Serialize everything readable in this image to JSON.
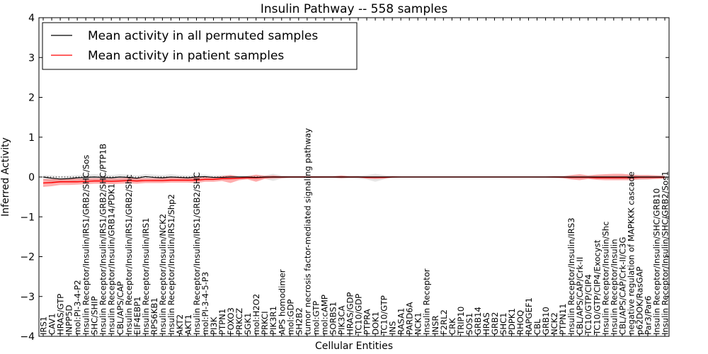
{
  "chart_data": {
    "type": "line",
    "title": "Insulin Pathway -- 558 samples",
    "xlabel": "Cellular Entities",
    "ylabel": "Inferred Activity",
    "ylim": [
      -4,
      4
    ],
    "yticks": [
      -4,
      -3,
      -2,
      -1,
      0,
      1,
      2,
      3,
      4
    ],
    "grid": false,
    "legend_position": "top-left",
    "categories": [
      "IRS1",
      "CAV1",
      "HRAS/GTP",
      "INPP5D",
      "mol:PI-3-4-P2",
      "Insulin Receptor/Insulin/IRS1/GRB2/SHC/Sos",
      "SHC/SHIP",
      "Insulin Receptor/Insulin/IRS1/GRB2/SHC/PTP1B",
      "Insulin Receptor/Insulin/GRB14/PDK1",
      "CBL/APS/CAP",
      "Insulin Receptor/Insulin/IRS1/GRB2/Shc",
      "EIF4EBP1",
      "Insulin Receptor/Insulin/IRS1",
      "RPS6KB1",
      "Insulin Receptor/Insulin/NCK2",
      "Insulin Receptor/Insulin/IRS1/Shp2",
      "AKT2",
      "AKT1",
      "Insulin Receptor/Insulin/IRS1/GRB2/SHC",
      "mol:PI-3-4-5-P3",
      "PI3K",
      "PTPN1",
      "FOXO3",
      "PRKCZ",
      "SGK1",
      "mol:H2O2",
      "PRKCI",
      "PIK3R1",
      "APS homodimer",
      "mol:GDP",
      "SH2B2",
      "tumor necrosis factor-mediated signaling pathway",
      "mol:GTP",
      "mol:cAMP",
      "SORBS1",
      "PIK3CA",
      "HRAS/GDP",
      "TC10/GDP",
      "PTPRA",
      "DOK1",
      "TC10/GTP",
      "INS",
      "RASA1",
      "PARD6A",
      "NCK1",
      "Insulin Receptor",
      "INSR",
      "F2RL2",
      "CRK",
      "TRIP10",
      "SOS1",
      "GRB14",
      "HRAS",
      "GRB2",
      "SHC1",
      "PDPK1",
      "RHOQ",
      "RAPGEF1",
      "CBL",
      "GRB10",
      "NCK2",
      "PTPN11",
      "Insulin Receptor/Insulin/IRS3",
      "CBL/APS/CAP/Crk-II",
      "TC10/GTP/CIP4",
      "TC10/GTP/CIP4/Exocyst",
      "Insulin Receptor/Insulin/Shc",
      "Insulin Receptor/Insulin",
      "CBL/APS/CAP/Crk-II/C3G",
      "negative regulation of MAPKKK cascade",
      "p62DOK/RasGAP",
      "Par3/Par6",
      "Insulin Receptor/Insulin/SHC/GRB10",
      "Insulin Receptor/Insulin/SHC/GRB2/Sos1"
    ],
    "series": [
      {
        "name": "Mean activity in all permuted samples",
        "color": "#000000",
        "values": [
          0.0,
          -0.03,
          -0.05,
          -0.04,
          -0.02,
          -0.01,
          0.0,
          -0.01,
          -0.02,
          0.0,
          -0.01,
          -0.03,
          0.01,
          -0.01,
          -0.02,
          0.0,
          -0.01,
          -0.02,
          0.0,
          0.01,
          -0.01,
          -0.01,
          0.0,
          0.0,
          0.0,
          -0.01,
          0.0,
          0.0,
          0.0,
          0.0,
          0.0,
          0.0,
          0.0,
          0.0,
          0.0,
          0.0,
          0.0,
          0.0,
          0.0,
          0.0,
          0.0,
          0.0,
          0.0,
          0.0,
          0.0,
          0.0,
          0.0,
          0.0,
          0.0,
          0.0,
          0.0,
          0.0,
          0.0,
          0.0,
          0.0,
          0.0,
          0.0,
          0.0,
          0.0,
          0.0,
          0.0,
          0.0,
          0.0,
          0.0,
          0.0,
          0.0,
          0.0,
          0.0,
          0.0,
          0.0,
          0.0,
          0.0,
          0.0,
          0.0
        ],
        "lower": [
          -0.08,
          -0.12,
          -0.14,
          -0.12,
          -0.1,
          -0.08,
          -0.08,
          -0.08,
          -0.1,
          -0.08,
          -0.08,
          -0.1,
          -0.06,
          -0.08,
          -0.1,
          -0.07,
          -0.06,
          -0.1,
          -0.05,
          -0.04,
          -0.07,
          -0.07,
          -0.06,
          -0.04,
          -0.05,
          -0.07,
          -0.04,
          -0.1,
          -0.04,
          -0.02,
          -0.02,
          -0.02,
          -0.03,
          -0.02,
          -0.02,
          -0.04,
          -0.03,
          -0.05,
          -0.06,
          -0.12,
          -0.06,
          -0.02,
          -0.01,
          -0.01,
          -0.01,
          -0.01,
          -0.01,
          -0.01,
          -0.01,
          -0.01,
          -0.01,
          -0.01,
          -0.01,
          -0.01,
          -0.01,
          -0.01,
          -0.01,
          -0.01,
          -0.02,
          -0.02,
          -0.02,
          -0.03,
          -0.05,
          -0.04,
          -0.05,
          -0.05,
          -0.05,
          -0.06,
          -0.06,
          -0.06,
          -0.07,
          -0.06,
          -0.05,
          -0.04
        ],
        "upper": [
          0.05,
          0.04,
          0.02,
          0.03,
          0.05,
          0.06,
          0.07,
          0.06,
          0.05,
          0.07,
          0.06,
          0.04,
          0.07,
          0.06,
          0.05,
          0.07,
          0.05,
          0.04,
          0.06,
          0.06,
          0.04,
          0.05,
          0.05,
          0.04,
          0.04,
          0.04,
          0.04,
          0.08,
          0.04,
          0.02,
          0.02,
          0.02,
          0.02,
          0.02,
          0.02,
          0.03,
          0.02,
          0.03,
          0.05,
          0.08,
          0.05,
          0.02,
          0.01,
          0.01,
          0.01,
          0.01,
          0.01,
          0.01,
          0.01,
          0.01,
          0.01,
          0.01,
          0.01,
          0.01,
          0.01,
          0.01,
          0.01,
          0.01,
          0.01,
          0.01,
          0.02,
          0.02,
          0.03,
          0.03,
          0.03,
          0.04,
          0.04,
          0.04,
          0.05,
          0.05,
          0.05,
          0.05,
          0.04,
          0.03
        ]
      },
      {
        "name": "Mean activity in patient samples",
        "color": "#ff0000",
        "values": [
          -0.15,
          -0.14,
          -0.12,
          -0.12,
          -0.12,
          -0.11,
          -0.1,
          -0.1,
          -0.11,
          -0.1,
          -0.09,
          -0.1,
          -0.09,
          -0.09,
          -0.09,
          -0.08,
          -0.08,
          -0.08,
          -0.08,
          -0.06,
          -0.06,
          -0.04,
          -0.04,
          -0.03,
          -0.02,
          -0.02,
          -0.01,
          0.0,
          0.0,
          0.0,
          0.0,
          0.0,
          0.0,
          0.0,
          0.0,
          0.0,
          0.0,
          0.0,
          -0.01,
          -0.01,
          -0.01,
          0.0,
          0.0,
          0.0,
          0.0,
          0.0,
          0.0,
          0.0,
          0.0,
          0.0,
          0.0,
          0.0,
          0.0,
          0.0,
          0.0,
          0.0,
          0.0,
          0.0,
          0.0,
          0.0,
          0.0,
          0.0,
          -0.01,
          -0.01,
          -0.01,
          -0.02,
          -0.02,
          -0.02,
          -0.02,
          -0.02,
          -0.01,
          -0.01,
          -0.01,
          -0.01
        ],
        "lower": [
          -0.25,
          -0.23,
          -0.2,
          -0.2,
          -0.19,
          -0.18,
          -0.17,
          -0.17,
          -0.18,
          -0.17,
          -0.16,
          -0.17,
          -0.15,
          -0.15,
          -0.15,
          -0.14,
          -0.14,
          -0.14,
          -0.15,
          -0.12,
          -0.12,
          -0.1,
          -0.15,
          -0.08,
          -0.06,
          -0.12,
          -0.05,
          -0.04,
          -0.03,
          -0.02,
          -0.02,
          -0.02,
          -0.02,
          -0.02,
          -0.02,
          -0.03,
          -0.02,
          -0.02,
          -0.04,
          -0.05,
          -0.04,
          -0.02,
          -0.01,
          -0.01,
          -0.01,
          -0.01,
          -0.01,
          -0.01,
          -0.01,
          -0.01,
          -0.01,
          -0.01,
          -0.01,
          -0.01,
          -0.01,
          -0.01,
          -0.01,
          -0.01,
          -0.01,
          -0.01,
          -0.02,
          -0.03,
          -0.06,
          -0.08,
          -0.05,
          -0.07,
          -0.08,
          -0.08,
          -0.08,
          -0.08,
          -0.06,
          -0.06,
          -0.05,
          -0.04
        ],
        "upper": [
          -0.05,
          -0.05,
          -0.04,
          -0.04,
          -0.04,
          -0.04,
          -0.03,
          -0.03,
          -0.04,
          -0.03,
          -0.02,
          -0.03,
          -0.03,
          -0.03,
          -0.03,
          -0.02,
          -0.02,
          -0.02,
          -0.01,
          0.0,
          0.0,
          0.02,
          0.05,
          0.01,
          0.02,
          0.06,
          0.03,
          0.04,
          0.02,
          0.02,
          0.02,
          0.02,
          0.02,
          0.02,
          0.02,
          0.04,
          0.02,
          0.02,
          0.02,
          0.02,
          0.02,
          0.02,
          0.01,
          0.01,
          0.01,
          0.01,
          0.01,
          0.01,
          0.01,
          0.01,
          0.01,
          0.01,
          0.01,
          0.01,
          0.01,
          0.01,
          0.01,
          0.01,
          0.01,
          0.01,
          0.02,
          0.02,
          0.05,
          0.07,
          0.04,
          0.06,
          0.07,
          0.08,
          0.08,
          0.06,
          0.05,
          0.05,
          0.04,
          0.03
        ]
      }
    ]
  }
}
